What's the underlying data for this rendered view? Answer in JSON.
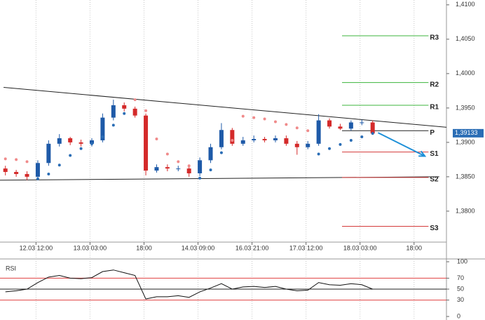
{
  "chart_data": [
    {
      "type": "candlestick",
      "x": [
        1.5,
        4.5,
        7.5,
        10.5,
        13.5,
        16.5,
        19.5,
        22.5,
        25.5,
        28.5,
        31.5,
        34.5,
        37.5,
        40.5,
        43.5,
        46.5,
        49.5,
        52.5,
        55.5,
        58.5,
        61.5,
        64.5,
        67.5,
        70.5,
        73.5,
        76.5,
        79.5,
        82.5,
        85.5,
        88.5,
        91.5,
        94.5,
        97.5,
        100.5,
        103.5
      ],
      "open": [
        1.3862,
        1.3857,
        1.3854,
        1.385,
        1.387,
        1.3898,
        1.3906,
        1.39,
        1.3898,
        1.3903,
        1.3936,
        1.3954,
        1.3949,
        1.3939,
        1.3859,
        1.3864,
        1.3862,
        1.3862,
        1.3855,
        1.3874,
        1.3893,
        1.3918,
        1.3898,
        1.3903,
        1.3905,
        1.3903,
        1.3906,
        1.3898,
        1.3893,
        1.3898,
        1.3932,
        1.3923,
        1.392,
        1.3929,
        1.3929
      ],
      "high": [
        1.3866,
        1.386,
        1.3858,
        1.3874,
        1.3903,
        1.3912,
        1.3908,
        1.3904,
        1.3906,
        1.3942,
        1.3962,
        1.3958,
        1.3952,
        1.3942,
        1.3868,
        1.3868,
        1.3866,
        1.3866,
        1.3878,
        1.3898,
        1.3928,
        1.3921,
        1.3908,
        1.391,
        1.3908,
        1.391,
        1.391,
        1.3902,
        1.3902,
        1.3941,
        1.3935,
        1.3927,
        1.3932,
        1.3933,
        1.3932
      ],
      "low": [
        1.3852,
        1.385,
        1.3845,
        1.3848,
        1.3866,
        1.3894,
        1.3896,
        1.3894,
        1.3894,
        1.39,
        1.3932,
        1.3945,
        1.3936,
        1.3852,
        1.3856,
        1.3858,
        1.3858,
        1.385,
        1.3851,
        1.387,
        1.389,
        1.3895,
        1.3895,
        1.39,
        1.39,
        1.39,
        1.3895,
        1.3882,
        1.389,
        1.3895,
        1.392,
        1.3918,
        1.3917,
        1.3925,
        1.3911
      ],
      "close": [
        1.3857,
        1.3854,
        1.385,
        1.387,
        1.3898,
        1.3906,
        1.39,
        1.3898,
        1.3903,
        1.3936,
        1.3954,
        1.3949,
        1.3939,
        1.3859,
        1.3864,
        1.3862,
        1.3862,
        1.3855,
        1.3874,
        1.3893,
        1.3918,
        1.3898,
        1.3903,
        1.3905,
        1.3903,
        1.3906,
        1.3898,
        1.3893,
        1.3898,
        1.3932,
        1.3923,
        1.392,
        1.3929,
        1.3929,
        1.3913
      ],
      "sar": [
        1.3876,
        1.3875,
        1.3872,
        1.3847,
        1.3854,
        1.3867,
        1.3881,
        1.3891,
        1.3898,
        1.3908,
        1.3925,
        1.3942,
        1.3962,
        1.3946,
        1.3905,
        1.3883,
        1.3872,
        1.3866,
        1.3848,
        1.386,
        1.3885,
        1.3903,
        1.3938,
        1.3936,
        1.3934,
        1.393,
        1.3926,
        1.3921,
        1.3917,
        1.3883,
        1.3891,
        1.3897,
        1.3903,
        1.3908,
        1.3913
      ],
      "up_color": "#1e5aa8",
      "down_color": "#d42a2a",
      "sar_below_color": "#2a6db5",
      "sar_above_color": "#f08a8a",
      "xlim": [
        0,
        124
      ],
      "xticks": [
        {
          "value": 10,
          "label": "12.03 12:00"
        },
        {
          "value": 25,
          "label": "13.03 03:00"
        },
        {
          "value": 40,
          "label": "18:00"
        },
        {
          "value": 55,
          "label": "14.03 09:00"
        },
        {
          "value": 70,
          "label": "16.03 21:00"
        },
        {
          "value": 85,
          "label": "17.03 12:00"
        },
        {
          "value": 100,
          "label": "18.03 03:00"
        },
        {
          "value": 115,
          "label": "18:00"
        }
      ],
      "ylim": [
        1.3755,
        1.4107
      ],
      "yticks": [
        {
          "value": 1.41,
          "label": "1,4100"
        },
        {
          "value": 1.405,
          "label": "1,4050"
        },
        {
          "value": 1.4,
          "label": "1,4000"
        },
        {
          "value": 1.395,
          "label": "1,3950"
        },
        {
          "value": 1.39,
          "label": "1,3900"
        },
        {
          "value": 1.385,
          "label": "1,3850"
        },
        {
          "value": 1.38,
          "label": "1,3800"
        }
      ],
      "grid": true,
      "level_x": [
        95,
        119
      ],
      "levels": [
        {
          "name": "R3",
          "value": 1.4055,
          "color": "#3cb43c"
        },
        {
          "name": "R2",
          "value": 1.3987,
          "color": "#3cb43c"
        },
        {
          "name": "R1",
          "value": 1.3954,
          "color": "#3cb43c"
        },
        {
          "name": "P",
          "value": 1.3917,
          "color": "#222222"
        },
        {
          "name": "S1",
          "value": 1.3886,
          "color": "#d43a3a"
        },
        {
          "name": "S2",
          "value": 1.3849,
          "color": "#d43a3a"
        },
        {
          "name": "S3",
          "value": 1.3778,
          "color": "#d43a3a"
        }
      ],
      "trendlines": [
        {
          "x": [
            1,
            124
          ],
          "values": [
            1.398,
            1.3922
          ],
          "color": "#222222"
        },
        {
          "x": [
            0,
            122
          ],
          "values": [
            1.3845,
            1.385
          ],
          "color": "#222222"
        }
      ],
      "forecast": {
        "x": [
          105,
          118
        ],
        "values": [
          1.3914,
          1.388
        ],
        "color": "#1e90d8"
      },
      "last_price": {
        "value": 1.39133,
        "label": "1,39133"
      }
    },
    {
      "type": "line",
      "title": "RSI",
      "x": [
        1.5,
        4.5,
        7.5,
        10.5,
        13.5,
        16.5,
        19.5,
        22.5,
        25.5,
        28.5,
        31.5,
        34.5,
        37.5,
        40.5,
        43.5,
        46.5,
        49.5,
        52.5,
        55.5,
        58.5,
        61.5,
        64.5,
        67.5,
        70.5,
        73.5,
        76.5,
        79.5,
        82.5,
        85.5,
        88.5,
        91.5,
        94.5,
        97.5,
        100.5,
        103.5
      ],
      "values": [
        45,
        47,
        50,
        62,
        72,
        75,
        70,
        69,
        71,
        82,
        85,
        80,
        75,
        32,
        36,
        36,
        38,
        35,
        45,
        52,
        60,
        50,
        54,
        55,
        53,
        55,
        50,
        47,
        48,
        62,
        58,
        57,
        60,
        58,
        50
      ],
      "color": "#111111",
      "xlim": [
        0,
        124
      ],
      "ylim": [
        0,
        100
      ],
      "yticks": [
        0,
        30,
        50,
        70,
        100
      ],
      "hlines": [
        {
          "value": 70,
          "color": "#e04040"
        },
        {
          "value": 50,
          "color": "#222222"
        },
        {
          "value": 30,
          "color": "#e04040"
        }
      ]
    }
  ]
}
